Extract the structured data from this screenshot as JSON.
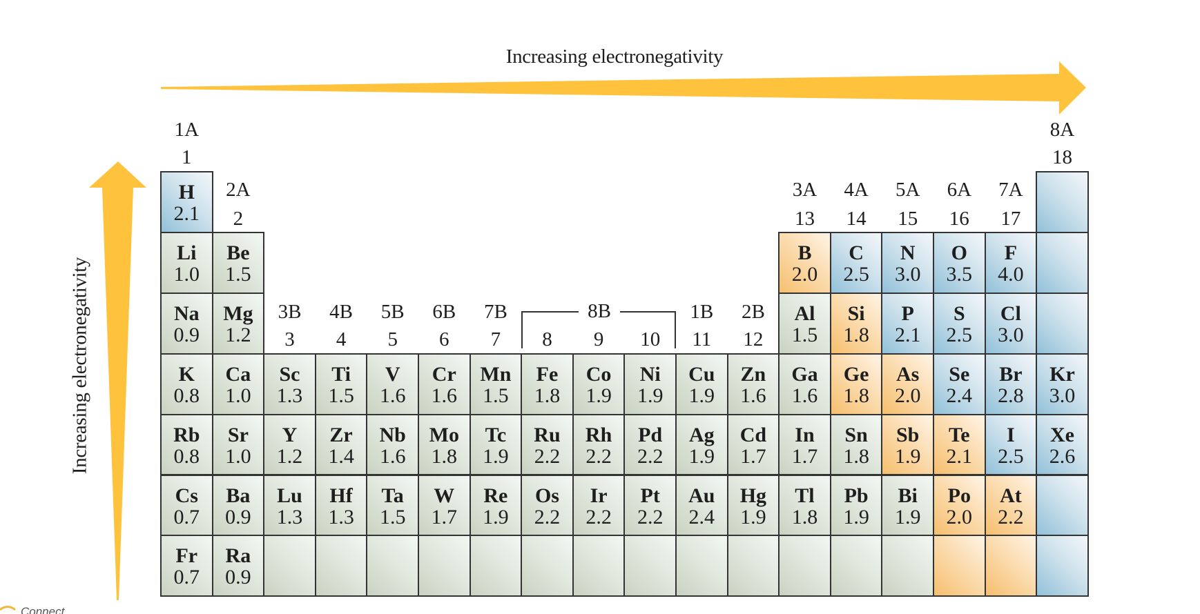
{
  "header": {
    "horizontal_label": "Increasing electronegativity",
    "vertical_label": "Increasing electronegativity"
  },
  "colors": {
    "arrow": "#FFC23D",
    "nonmetal_blue": "#9EC8DD",
    "metalloid_orange": "#F6C27C",
    "metal_gray": "#D6DDD2",
    "border": "#333333"
  },
  "group_labels": [
    {
      "id": "g1",
      "roman": "1A",
      "num": "1"
    },
    {
      "id": "g2",
      "roman": "2A",
      "num": "2"
    },
    {
      "id": "g3",
      "roman": "3B",
      "num": "3"
    },
    {
      "id": "g4",
      "roman": "4B",
      "num": "4"
    },
    {
      "id": "g5",
      "roman": "5B",
      "num": "5"
    },
    {
      "id": "g6",
      "roman": "6B",
      "num": "6"
    },
    {
      "id": "g7",
      "roman": "7B",
      "num": "7"
    },
    {
      "id": "g8",
      "roman": "",
      "num": "8"
    },
    {
      "id": "g9",
      "roman": "",
      "num": "9"
    },
    {
      "id": "g10",
      "roman": "",
      "num": "10"
    },
    {
      "id": "g11",
      "roman": "1B",
      "num": "11"
    },
    {
      "id": "g12",
      "roman": "2B",
      "num": "12"
    },
    {
      "id": "g13",
      "roman": "3A",
      "num": "13"
    },
    {
      "id": "g14",
      "roman": "4A",
      "num": "14"
    },
    {
      "id": "g15",
      "roman": "5A",
      "num": "15"
    },
    {
      "id": "g16",
      "roman": "6A",
      "num": "16"
    },
    {
      "id": "g17",
      "roman": "7A",
      "num": "17"
    },
    {
      "id": "g18",
      "roman": "8A",
      "num": "18"
    }
  ],
  "group_8b_label": "8B",
  "elements": [
    {
      "sym": "H",
      "en": "2.1",
      "row": 1,
      "col": 1,
      "cls": "blue"
    },
    {
      "sym": "",
      "en": "",
      "row": 1,
      "col": 18,
      "cls": "blue"
    },
    {
      "sym": "Li",
      "en": "1.0",
      "row": 2,
      "col": 1,
      "cls": "gray"
    },
    {
      "sym": "Be",
      "en": "1.5",
      "row": 2,
      "col": 2,
      "cls": "gray"
    },
    {
      "sym": "B",
      "en": "2.0",
      "row": 2,
      "col": 13,
      "cls": "orange"
    },
    {
      "sym": "C",
      "en": "2.5",
      "row": 2,
      "col": 14,
      "cls": "blue"
    },
    {
      "sym": "N",
      "en": "3.0",
      "row": 2,
      "col": 15,
      "cls": "blue"
    },
    {
      "sym": "O",
      "en": "3.5",
      "row": 2,
      "col": 16,
      "cls": "blue"
    },
    {
      "sym": "F",
      "en": "4.0",
      "row": 2,
      "col": 17,
      "cls": "blue"
    },
    {
      "sym": "",
      "en": "",
      "row": 2,
      "col": 18,
      "cls": "blue"
    },
    {
      "sym": "Na",
      "en": "0.9",
      "row": 3,
      "col": 1,
      "cls": "gray"
    },
    {
      "sym": "Mg",
      "en": "1.2",
      "row": 3,
      "col": 2,
      "cls": "gray"
    },
    {
      "sym": "Al",
      "en": "1.5",
      "row": 3,
      "col": 13,
      "cls": "gray"
    },
    {
      "sym": "Si",
      "en": "1.8",
      "row": 3,
      "col": 14,
      "cls": "orange"
    },
    {
      "sym": "P",
      "en": "2.1",
      "row": 3,
      "col": 15,
      "cls": "blue"
    },
    {
      "sym": "S",
      "en": "2.5",
      "row": 3,
      "col": 16,
      "cls": "blue"
    },
    {
      "sym": "Cl",
      "en": "3.0",
      "row": 3,
      "col": 17,
      "cls": "blue"
    },
    {
      "sym": "",
      "en": "",
      "row": 3,
      "col": 18,
      "cls": "blue"
    },
    {
      "sym": "K",
      "en": "0.8",
      "row": 4,
      "col": 1,
      "cls": "gray"
    },
    {
      "sym": "Ca",
      "en": "1.0",
      "row": 4,
      "col": 2,
      "cls": "gray"
    },
    {
      "sym": "Sc",
      "en": "1.3",
      "row": 4,
      "col": 3,
      "cls": "gray"
    },
    {
      "sym": "Ti",
      "en": "1.5",
      "row": 4,
      "col": 4,
      "cls": "gray"
    },
    {
      "sym": "V",
      "en": "1.6",
      "row": 4,
      "col": 5,
      "cls": "gray"
    },
    {
      "sym": "Cr",
      "en": "1.6",
      "row": 4,
      "col": 6,
      "cls": "gray"
    },
    {
      "sym": "Mn",
      "en": "1.5",
      "row": 4,
      "col": 7,
      "cls": "gray"
    },
    {
      "sym": "Fe",
      "en": "1.8",
      "row": 4,
      "col": 8,
      "cls": "gray"
    },
    {
      "sym": "Co",
      "en": "1.9",
      "row": 4,
      "col": 9,
      "cls": "gray"
    },
    {
      "sym": "Ni",
      "en": "1.9",
      "row": 4,
      "col": 10,
      "cls": "gray"
    },
    {
      "sym": "Cu",
      "en": "1.9",
      "row": 4,
      "col": 11,
      "cls": "gray"
    },
    {
      "sym": "Zn",
      "en": "1.6",
      "row": 4,
      "col": 12,
      "cls": "gray"
    },
    {
      "sym": "Ga",
      "en": "1.6",
      "row": 4,
      "col": 13,
      "cls": "gray"
    },
    {
      "sym": "Ge",
      "en": "1.8",
      "row": 4,
      "col": 14,
      "cls": "orange"
    },
    {
      "sym": "As",
      "en": "2.0",
      "row": 4,
      "col": 15,
      "cls": "orange"
    },
    {
      "sym": "Se",
      "en": "2.4",
      "row": 4,
      "col": 16,
      "cls": "blue"
    },
    {
      "sym": "Br",
      "en": "2.8",
      "row": 4,
      "col": 17,
      "cls": "blue"
    },
    {
      "sym": "Kr",
      "en": "3.0",
      "row": 4,
      "col": 18,
      "cls": "blue"
    },
    {
      "sym": "Rb",
      "en": "0.8",
      "row": 5,
      "col": 1,
      "cls": "gray"
    },
    {
      "sym": "Sr",
      "en": "1.0",
      "row": 5,
      "col": 2,
      "cls": "gray"
    },
    {
      "sym": "Y",
      "en": "1.2",
      "row": 5,
      "col": 3,
      "cls": "gray"
    },
    {
      "sym": "Zr",
      "en": "1.4",
      "row": 5,
      "col": 4,
      "cls": "gray"
    },
    {
      "sym": "Nb",
      "en": "1.6",
      "row": 5,
      "col": 5,
      "cls": "gray"
    },
    {
      "sym": "Mo",
      "en": "1.8",
      "row": 5,
      "col": 6,
      "cls": "gray"
    },
    {
      "sym": "Tc",
      "en": "1.9",
      "row": 5,
      "col": 7,
      "cls": "gray"
    },
    {
      "sym": "Ru",
      "en": "2.2",
      "row": 5,
      "col": 8,
      "cls": "gray"
    },
    {
      "sym": "Rh",
      "en": "2.2",
      "row": 5,
      "col": 9,
      "cls": "gray"
    },
    {
      "sym": "Pd",
      "en": "2.2",
      "row": 5,
      "col": 10,
      "cls": "gray"
    },
    {
      "sym": "Ag",
      "en": "1.9",
      "row": 5,
      "col": 11,
      "cls": "gray"
    },
    {
      "sym": "Cd",
      "en": "1.7",
      "row": 5,
      "col": 12,
      "cls": "gray"
    },
    {
      "sym": "In",
      "en": "1.7",
      "row": 5,
      "col": 13,
      "cls": "gray"
    },
    {
      "sym": "Sn",
      "en": "1.8",
      "row": 5,
      "col": 14,
      "cls": "gray"
    },
    {
      "sym": "Sb",
      "en": "1.9",
      "row": 5,
      "col": 15,
      "cls": "orange"
    },
    {
      "sym": "Te",
      "en": "2.1",
      "row": 5,
      "col": 16,
      "cls": "orange"
    },
    {
      "sym": "I",
      "en": "2.5",
      "row": 5,
      "col": 17,
      "cls": "blue"
    },
    {
      "sym": "Xe",
      "en": "2.6",
      "row": 5,
      "col": 18,
      "cls": "blue"
    },
    {
      "sym": "Cs",
      "en": "0.7",
      "row": 6,
      "col": 1,
      "cls": "gray"
    },
    {
      "sym": "Ba",
      "en": "0.9",
      "row": 6,
      "col": 2,
      "cls": "gray"
    },
    {
      "sym": "Lu",
      "en": "1.3",
      "row": 6,
      "col": 3,
      "cls": "gray"
    },
    {
      "sym": "Hf",
      "en": "1.3",
      "row": 6,
      "col": 4,
      "cls": "gray"
    },
    {
      "sym": "Ta",
      "en": "1.5",
      "row": 6,
      "col": 5,
      "cls": "gray"
    },
    {
      "sym": "W",
      "en": "1.7",
      "row": 6,
      "col": 6,
      "cls": "gray"
    },
    {
      "sym": "Re",
      "en": "1.9",
      "row": 6,
      "col": 7,
      "cls": "gray"
    },
    {
      "sym": "Os",
      "en": "2.2",
      "row": 6,
      "col": 8,
      "cls": "gray"
    },
    {
      "sym": "Ir",
      "en": "2.2",
      "row": 6,
      "col": 9,
      "cls": "gray"
    },
    {
      "sym": "Pt",
      "en": "2.2",
      "row": 6,
      "col": 10,
      "cls": "gray"
    },
    {
      "sym": "Au",
      "en": "2.4",
      "row": 6,
      "col": 11,
      "cls": "gray"
    },
    {
      "sym": "Hg",
      "en": "1.9",
      "row": 6,
      "col": 12,
      "cls": "gray"
    },
    {
      "sym": "Tl",
      "en": "1.8",
      "row": 6,
      "col": 13,
      "cls": "gray"
    },
    {
      "sym": "Pb",
      "en": "1.9",
      "row": 6,
      "col": 14,
      "cls": "gray"
    },
    {
      "sym": "Bi",
      "en": "1.9",
      "row": 6,
      "col": 15,
      "cls": "gray"
    },
    {
      "sym": "Po",
      "en": "2.0",
      "row": 6,
      "col": 16,
      "cls": "orange"
    },
    {
      "sym": "At",
      "en": "2.2",
      "row": 6,
      "col": 17,
      "cls": "orange"
    },
    {
      "sym": "",
      "en": "",
      "row": 6,
      "col": 18,
      "cls": "blue"
    },
    {
      "sym": "Fr",
      "en": "0.7",
      "row": 7,
      "col": 1,
      "cls": "gray"
    },
    {
      "sym": "Ra",
      "en": "0.9",
      "row": 7,
      "col": 2,
      "cls": "gray"
    },
    {
      "sym": "",
      "en": "",
      "row": 7,
      "col": 3,
      "cls": "gray"
    },
    {
      "sym": "",
      "en": "",
      "row": 7,
      "col": 4,
      "cls": "gray"
    },
    {
      "sym": "",
      "en": "",
      "row": 7,
      "col": 5,
      "cls": "gray"
    },
    {
      "sym": "",
      "en": "",
      "row": 7,
      "col": 6,
      "cls": "gray"
    },
    {
      "sym": "",
      "en": "",
      "row": 7,
      "col": 7,
      "cls": "gray"
    },
    {
      "sym": "",
      "en": "",
      "row": 7,
      "col": 8,
      "cls": "gray"
    },
    {
      "sym": "",
      "en": "",
      "row": 7,
      "col": 9,
      "cls": "gray"
    },
    {
      "sym": "",
      "en": "",
      "row": 7,
      "col": 10,
      "cls": "gray"
    },
    {
      "sym": "",
      "en": "",
      "row": 7,
      "col": 11,
      "cls": "gray"
    },
    {
      "sym": "",
      "en": "",
      "row": 7,
      "col": 12,
      "cls": "gray"
    },
    {
      "sym": "",
      "en": "",
      "row": 7,
      "col": 13,
      "cls": "gray"
    },
    {
      "sym": "",
      "en": "",
      "row": 7,
      "col": 14,
      "cls": "gray"
    },
    {
      "sym": "",
      "en": "",
      "row": 7,
      "col": 15,
      "cls": "gray"
    },
    {
      "sym": "",
      "en": "",
      "row": 7,
      "col": 16,
      "cls": "orange"
    },
    {
      "sym": "",
      "en": "",
      "row": 7,
      "col": 17,
      "cls": "orange"
    },
    {
      "sym": "",
      "en": "",
      "row": 7,
      "col": 18,
      "cls": "blue"
    }
  ],
  "watermark": {
    "text": "Connect"
  }
}
